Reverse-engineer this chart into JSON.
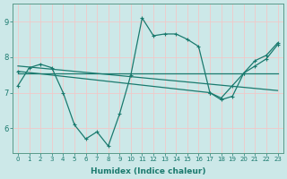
{
  "xlabel": "Humidex (Indice chaleur)",
  "bg_color": "#cce8e8",
  "grid_color": "#f0c8c8",
  "line_color": "#1a7a6e",
  "ylim": [
    5.3,
    9.5
  ],
  "xlim": [
    -0.5,
    23.5
  ],
  "yticks": [
    6,
    7,
    8,
    9
  ],
  "xticks": [
    0,
    1,
    2,
    3,
    4,
    5,
    6,
    7,
    8,
    9,
    10,
    11,
    12,
    13,
    14,
    15,
    16,
    17,
    18,
    19,
    20,
    21,
    22,
    23
  ],
  "line1_x": [
    0,
    1,
    2,
    3,
    4,
    5,
    6,
    7,
    8,
    9,
    10,
    11,
    12,
    13,
    14,
    15,
    16,
    17,
    18,
    19,
    20,
    21,
    22,
    23
  ],
  "line1_y": [
    7.2,
    7.7,
    7.8,
    7.7,
    7.0,
    6.1,
    5.7,
    5.9,
    5.5,
    6.4,
    7.5,
    9.1,
    8.6,
    8.65,
    8.65,
    8.5,
    8.3,
    7.0,
    6.8,
    6.9,
    7.55,
    7.9,
    8.05,
    8.4
  ],
  "line2_x": [
    0,
    1,
    2,
    3,
    4,
    5,
    6,
    7,
    8,
    9,
    10,
    11,
    12,
    13,
    14,
    15,
    16,
    17,
    18,
    19,
    20,
    21,
    22,
    23
  ],
  "line2_y": [
    7.75,
    7.72,
    7.69,
    7.66,
    7.63,
    7.6,
    7.57,
    7.54,
    7.51,
    7.48,
    7.45,
    7.42,
    7.39,
    7.36,
    7.33,
    7.3,
    7.27,
    7.24,
    7.21,
    7.18,
    7.15,
    7.12,
    7.09,
    7.06
  ],
  "line3_x": [
    0,
    1,
    2,
    3,
    4,
    5,
    6,
    7,
    8,
    9,
    10,
    11,
    12,
    13,
    14,
    15,
    16,
    17,
    18,
    19,
    20,
    21,
    22,
    23
  ],
  "line3_y": [
    7.55,
    7.55,
    7.55,
    7.55,
    7.55,
    7.55,
    7.55,
    7.55,
    7.55,
    7.55,
    7.55,
    7.55,
    7.55,
    7.55,
    7.55,
    7.55,
    7.55,
    7.55,
    7.55,
    7.55,
    7.55,
    7.55,
    7.55,
    7.55
  ],
  "line4_x": [
    0,
    17,
    18,
    19,
    20,
    21,
    22,
    23
  ],
  "line4_y": [
    7.6,
    7.0,
    6.85,
    7.2,
    7.55,
    7.75,
    7.95,
    8.35
  ]
}
